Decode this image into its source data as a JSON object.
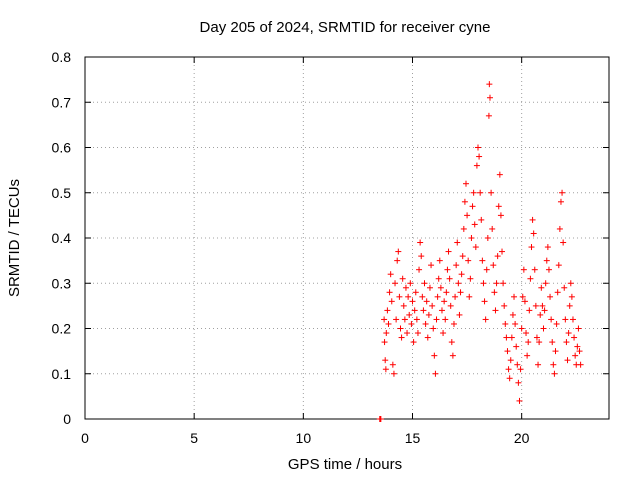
{
  "chart_data": {
    "type": "scatter",
    "title": "Day 205 of 2024, SRMTID for receiver cyne",
    "xlabel": "GPS time / hours",
    "ylabel": "SRMTID / TECUs",
    "xlim": [
      0,
      24
    ],
    "ylim": [
      0,
      0.8
    ],
    "xticks": [
      0,
      5,
      10,
      15,
      20
    ],
    "yticks": [
      0,
      0.1,
      0.2,
      0.3,
      0.4,
      0.5,
      0.6,
      0.7,
      0.8
    ],
    "xtick_labels": [
      "0",
      "5",
      "10",
      "15",
      "20"
    ],
    "ytick_labels": [
      "0",
      "0.1",
      "0.2",
      "0.3",
      "0.4",
      "0.5",
      "0.6",
      "0.7",
      "0.8"
    ],
    "grid": true,
    "marker": "+",
    "marker_color": "#ff0000",
    "series": [
      {
        "name": "SRMTID",
        "points": [
          [
            13.5,
            0.0
          ],
          [
            13.52,
            0.0
          ],
          [
            13.55,
            0.0
          ],
          [
            13.7,
            0.22
          ],
          [
            13.72,
            0.17
          ],
          [
            13.75,
            0.13
          ],
          [
            13.78,
            0.11
          ],
          [
            13.8,
            0.19
          ],
          [
            13.85,
            0.24
          ],
          [
            13.9,
            0.21
          ],
          [
            13.95,
            0.28
          ],
          [
            14.0,
            0.32
          ],
          [
            14.05,
            0.26
          ],
          [
            14.1,
            0.12
          ],
          [
            14.15,
            0.1
          ],
          [
            14.2,
            0.3
          ],
          [
            14.25,
            0.22
          ],
          [
            14.3,
            0.35
          ],
          [
            14.35,
            0.37
          ],
          [
            14.4,
            0.27
          ],
          [
            14.45,
            0.2
          ],
          [
            14.5,
            0.18
          ],
          [
            14.55,
            0.31
          ],
          [
            14.6,
            0.25
          ],
          [
            14.65,
            0.22
          ],
          [
            14.7,
            0.29
          ],
          [
            14.75,
            0.19
          ],
          [
            14.8,
            0.27
          ],
          [
            14.85,
            0.23
          ],
          [
            14.9,
            0.3
          ],
          [
            14.95,
            0.21
          ],
          [
            15.0,
            0.26
          ],
          [
            15.05,
            0.17
          ],
          [
            15.1,
            0.24
          ],
          [
            15.15,
            0.28
          ],
          [
            15.2,
            0.22
          ],
          [
            15.25,
            0.19
          ],
          [
            15.3,
            0.33
          ],
          [
            15.35,
            0.39
          ],
          [
            15.4,
            0.36
          ],
          [
            15.45,
            0.27
          ],
          [
            15.5,
            0.24
          ],
          [
            15.55,
            0.3
          ],
          [
            15.6,
            0.21
          ],
          [
            15.65,
            0.26
          ],
          [
            15.7,
            0.18
          ],
          [
            15.75,
            0.23
          ],
          [
            15.8,
            0.29
          ],
          [
            15.85,
            0.34
          ],
          [
            15.9,
            0.25
          ],
          [
            15.95,
            0.2
          ],
          [
            16.0,
            0.14
          ],
          [
            16.05,
            0.1
          ],
          [
            16.1,
            0.22
          ],
          [
            16.15,
            0.27
          ],
          [
            16.2,
            0.31
          ],
          [
            16.25,
            0.35
          ],
          [
            16.3,
            0.29
          ],
          [
            16.35,
            0.24
          ],
          [
            16.4,
            0.19
          ],
          [
            16.45,
            0.26
          ],
          [
            16.5,
            0.22
          ],
          [
            16.55,
            0.28
          ],
          [
            16.6,
            0.33
          ],
          [
            16.65,
            0.37
          ],
          [
            16.7,
            0.31
          ],
          [
            16.75,
            0.25
          ],
          [
            16.8,
            0.17
          ],
          [
            16.85,
            0.14
          ],
          [
            16.9,
            0.21
          ],
          [
            16.95,
            0.27
          ],
          [
            17.0,
            0.34
          ],
          [
            17.05,
            0.39
          ],
          [
            17.1,
            0.3
          ],
          [
            17.15,
            0.23
          ],
          [
            17.2,
            0.28
          ],
          [
            17.25,
            0.32
          ],
          [
            17.3,
            0.36
          ],
          [
            17.35,
            0.42
          ],
          [
            17.4,
            0.48
          ],
          [
            17.45,
            0.52
          ],
          [
            17.5,
            0.45
          ],
          [
            17.55,
            0.35
          ],
          [
            17.6,
            0.27
          ],
          [
            17.65,
            0.31
          ],
          [
            17.7,
            0.4
          ],
          [
            17.75,
            0.47
          ],
          [
            17.8,
            0.5
          ],
          [
            17.85,
            0.43
          ],
          [
            17.9,
            0.38
          ],
          [
            17.95,
            0.56
          ],
          [
            18.0,
            0.6
          ],
          [
            18.05,
            0.58
          ],
          [
            18.1,
            0.5
          ],
          [
            18.15,
            0.44
          ],
          [
            18.2,
            0.35
          ],
          [
            18.25,
            0.3
          ],
          [
            18.3,
            0.26
          ],
          [
            18.35,
            0.22
          ],
          [
            18.4,
            0.33
          ],
          [
            18.45,
            0.4
          ],
          [
            18.5,
            0.67
          ],
          [
            18.52,
            0.74
          ],
          [
            18.55,
            0.71
          ],
          [
            18.6,
            0.5
          ],
          [
            18.65,
            0.42
          ],
          [
            18.7,
            0.34
          ],
          [
            18.75,
            0.28
          ],
          [
            18.8,
            0.24
          ],
          [
            18.85,
            0.3
          ],
          [
            18.9,
            0.36
          ],
          [
            18.95,
            0.47
          ],
          [
            19.0,
            0.54
          ],
          [
            19.05,
            0.45
          ],
          [
            19.1,
            0.37
          ],
          [
            19.15,
            0.3
          ],
          [
            19.2,
            0.25
          ],
          [
            19.25,
            0.21
          ],
          [
            19.3,
            0.18
          ],
          [
            19.35,
            0.15
          ],
          [
            19.4,
            0.11
          ],
          [
            19.45,
            0.09
          ],
          [
            19.5,
            0.13
          ],
          [
            19.55,
            0.18
          ],
          [
            19.6,
            0.23
          ],
          [
            19.65,
            0.27
          ],
          [
            19.7,
            0.21
          ],
          [
            19.75,
            0.16
          ],
          [
            19.8,
            0.12
          ],
          [
            19.85,
            0.08
          ],
          [
            19.9,
            0.04
          ],
          [
            19.95,
            0.11
          ],
          [
            20.0,
            0.2
          ],
          [
            20.05,
            0.27
          ],
          [
            20.1,
            0.33
          ],
          [
            20.15,
            0.26
          ],
          [
            20.2,
            0.19
          ],
          [
            20.25,
            0.14
          ],
          [
            20.3,
            0.17
          ],
          [
            20.35,
            0.24
          ],
          [
            20.4,
            0.31
          ],
          [
            20.45,
            0.38
          ],
          [
            20.5,
            0.44
          ],
          [
            20.55,
            0.41
          ],
          [
            20.6,
            0.33
          ],
          [
            20.65,
            0.25
          ],
          [
            20.7,
            0.18
          ],
          [
            20.75,
            0.12
          ],
          [
            20.8,
            0.17
          ],
          [
            20.85,
            0.23
          ],
          [
            20.9,
            0.29
          ],
          [
            20.95,
            0.25
          ],
          [
            21.0,
            0.2
          ],
          [
            21.05,
            0.24
          ],
          [
            21.1,
            0.3
          ],
          [
            21.15,
            0.35
          ],
          [
            21.2,
            0.38
          ],
          [
            21.25,
            0.33
          ],
          [
            21.3,
            0.27
          ],
          [
            21.35,
            0.22
          ],
          [
            21.4,
            0.17
          ],
          [
            21.45,
            0.12
          ],
          [
            21.5,
            0.1
          ],
          [
            21.55,
            0.15
          ],
          [
            21.6,
            0.21
          ],
          [
            21.65,
            0.28
          ],
          [
            21.7,
            0.34
          ],
          [
            21.75,
            0.42
          ],
          [
            21.8,
            0.48
          ],
          [
            21.85,
            0.5
          ],
          [
            21.9,
            0.39
          ],
          [
            21.95,
            0.29
          ],
          [
            22.0,
            0.22
          ],
          [
            22.05,
            0.17
          ],
          [
            22.1,
            0.13
          ],
          [
            22.15,
            0.19
          ],
          [
            22.2,
            0.25
          ],
          [
            22.25,
            0.3
          ],
          [
            22.3,
            0.27
          ],
          [
            22.35,
            0.22
          ],
          [
            22.4,
            0.18
          ],
          [
            22.45,
            0.14
          ],
          [
            22.5,
            0.12
          ],
          [
            22.55,
            0.16
          ],
          [
            22.6,
            0.2
          ],
          [
            22.65,
            0.15
          ],
          [
            22.7,
            0.12
          ]
        ]
      }
    ]
  }
}
